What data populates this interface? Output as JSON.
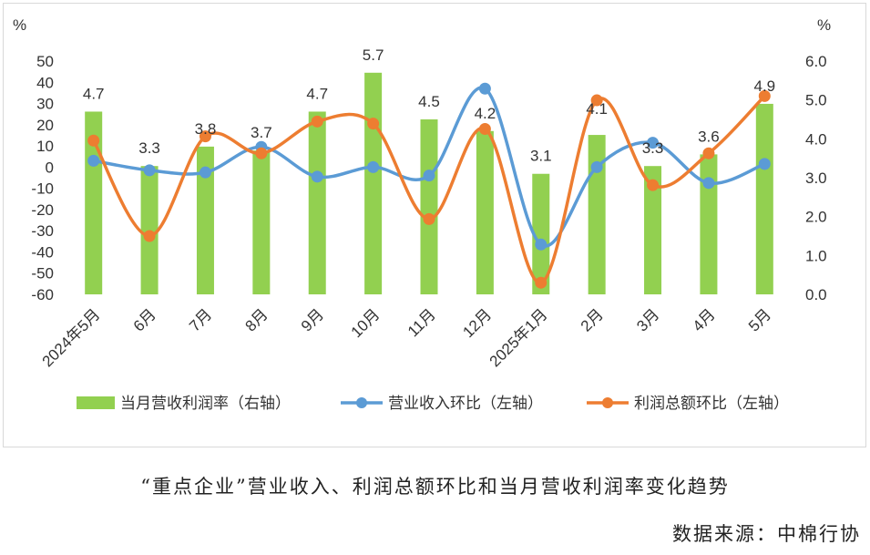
{
  "chart_data": {
    "type": "bar",
    "categories": [
      "2024年5月",
      "6月",
      "7月",
      "8月",
      "9月",
      "10月",
      "11月",
      "12月",
      "2025年1月",
      "2月",
      "3月",
      "4月",
      "5月"
    ],
    "left_axis": {
      "unit": "%",
      "ylim": [
        -60,
        50
      ],
      "ticks": [
        50,
        40,
        30,
        20,
        10,
        0,
        -10,
        -20,
        -30,
        -40,
        -50,
        -60
      ]
    },
    "right_axis": {
      "unit": "%",
      "ylim": [
        0,
        6.0
      ],
      "ticks": [
        "6.0",
        "5.0",
        "4.0",
        "3.0",
        "2.0",
        "1.0",
        "0.0"
      ]
    },
    "series": [
      {
        "name": "当月营收利润率（右轴）",
        "kind": "bar",
        "axis": "right",
        "color": "#92d050",
        "values": [
          4.7,
          3.3,
          3.8,
          3.7,
          4.7,
          5.7,
          4.5,
          4.2,
          3.1,
          4.1,
          3.3,
          3.6,
          4.9
        ]
      },
      {
        "name": "营业收入环比（左轴）",
        "kind": "line",
        "axis": "left",
        "color": "#5b9bd5",
        "values": [
          3,
          -1.5,
          -2.5,
          9.5,
          -4.5,
          0,
          -4,
          37,
          -36.5,
          0,
          11.5,
          -7.5,
          1.5
        ]
      },
      {
        "name": "利润总额环比（左轴）",
        "kind": "line",
        "axis": "left",
        "color": "#ed7d31",
        "values": [
          12.5,
          -32.5,
          14.5,
          6.5,
          21.5,
          20.5,
          -24.5,
          18,
          -54.5,
          31.5,
          -8.5,
          6.5,
          33.5
        ]
      }
    ]
  },
  "caption": "“重点企业”营业收入、利润总额环比和当月营收利润率变化趋势",
  "source": "数据来源：中棉行协"
}
